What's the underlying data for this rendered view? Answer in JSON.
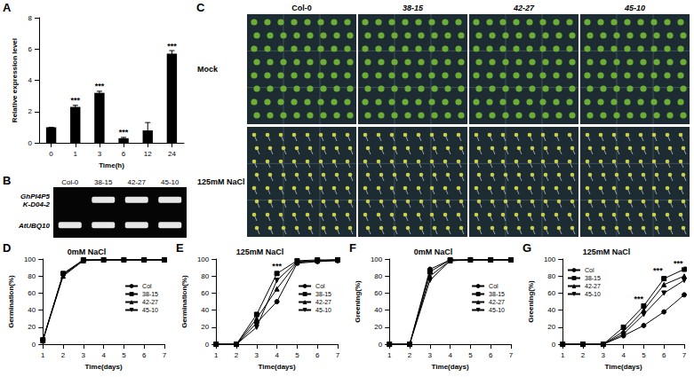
{
  "chart_data": [
    {
      "panel": "A",
      "type": "bar",
      "categories": [
        "0",
        "1",
        "3",
        "6",
        "12",
        "24"
      ],
      "values": [
        1,
        2.3,
        3.2,
        0.3,
        0.8,
        5.7
      ],
      "errors": [
        0,
        0.1,
        0.1,
        0.05,
        0.5,
        0.2
      ],
      "color": "#000000",
      "x_label": "Time(h)",
      "y_label": "Relative expression level",
      "ylim": [
        0,
        8
      ],
      "yticks": [
        0,
        2,
        4,
        6,
        8
      ],
      "annotations": [
        {
          "category": "1",
          "text": "***"
        },
        {
          "category": "3",
          "text": "***"
        },
        {
          "category": "6",
          "text": "***"
        },
        {
          "category": "24",
          "text": "***"
        }
      ]
    },
    {
      "panel": "D",
      "type": "line",
      "title": "0mM NaCl",
      "x_label": "Time(days)",
      "y_label": "Germination(%)",
      "x": [
        1,
        2,
        3,
        4,
        5,
        6,
        7
      ],
      "xlim": [
        1,
        7
      ],
      "xticks": [
        1,
        2,
        3,
        4,
        5,
        6,
        7
      ],
      "ylim": [
        0,
        100
      ],
      "yticks": [
        0,
        20,
        40,
        60,
        80,
        100
      ],
      "legend": "right",
      "series": [
        {
          "name": "Col",
          "color": "#000000",
          "marker": "circle",
          "values": [
            5,
            82,
            99,
            99,
            99,
            99,
            99
          ]
        },
        {
          "name": "38-15",
          "color": "#000000",
          "marker": "square",
          "values": [
            5,
            83,
            99,
            99,
            99,
            99,
            99
          ]
        },
        {
          "name": "42-27",
          "color": "#000000",
          "marker": "triangle",
          "values": [
            4,
            80,
            98,
            99,
            99,
            99,
            99
          ]
        },
        {
          "name": "45-10",
          "color": "#000000",
          "marker": "triangle-down",
          "values": [
            5,
            81,
            99,
            99,
            99,
            99,
            99
          ]
        }
      ]
    },
    {
      "panel": "E",
      "type": "line",
      "title": "125mM NaCl",
      "x_label": "Time(days)",
      "y_label": "Germination(%)",
      "x": [
        1,
        2,
        3,
        4,
        5,
        6,
        7
      ],
      "xlim": [
        1,
        7
      ],
      "xticks": [
        1,
        2,
        3,
        4,
        5,
        6,
        7
      ],
      "ylim": [
        0,
        100
      ],
      "yticks": [
        0,
        20,
        40,
        60,
        80,
        100
      ],
      "legend": "right",
      "series": [
        {
          "name": "Col",
          "color": "#000000",
          "marker": "circle",
          "values": [
            0,
            0,
            25,
            50,
            95,
            97,
            98
          ]
        },
        {
          "name": "38-15",
          "color": "#000000",
          "marker": "square",
          "values": [
            0,
            0,
            35,
            83,
            98,
            99,
            99
          ]
        },
        {
          "name": "42-27",
          "color": "#000000",
          "marker": "triangle",
          "values": [
            0,
            0,
            30,
            65,
            96,
            98,
            99
          ]
        },
        {
          "name": "45-10",
          "color": "#000000",
          "marker": "triangle-down",
          "values": [
            0,
            0,
            20,
            75,
            97,
            98,
            99
          ]
        }
      ],
      "annotations": [
        {
          "x": 4,
          "y": 92,
          "text": "***"
        }
      ]
    },
    {
      "panel": "F",
      "type": "line",
      "title": "0mM NaCl",
      "x_label": "Time(days)",
      "y_label": "Greening(%)",
      "x": [
        1,
        2,
        3,
        4,
        5,
        6,
        7
      ],
      "xlim": [
        1,
        7
      ],
      "xticks": [
        1,
        2,
        3,
        4,
        5,
        6,
        7
      ],
      "ylim": [
        0,
        100
      ],
      "yticks": [
        0,
        20,
        40,
        60,
        80,
        100
      ],
      "legend": "right",
      "series": [
        {
          "name": "Col",
          "color": "#000000",
          "marker": "circle",
          "values": [
            0,
            0,
            88,
            99,
            99,
            99,
            99
          ]
        },
        {
          "name": "38-15",
          "color": "#000000",
          "marker": "square",
          "values": [
            0,
            0,
            85,
            99,
            99,
            99,
            99
          ]
        },
        {
          "name": "42-27",
          "color": "#000000",
          "marker": "triangle",
          "values": [
            0,
            0,
            80,
            98,
            99,
            99,
            99
          ]
        },
        {
          "name": "45-10",
          "color": "#000000",
          "marker": "triangle-down",
          "values": [
            0,
            0,
            75,
            98,
            99,
            99,
            99
          ]
        }
      ]
    },
    {
      "panel": "G",
      "type": "line",
      "title": "125mM NaCl",
      "x_label": "Time(days)",
      "y_label": "Greening(%)",
      "x": [
        1,
        2,
        3,
        4,
        5,
        6,
        7
      ],
      "xlim": [
        1,
        7
      ],
      "xticks": [
        1,
        2,
        3,
        4,
        5,
        6,
        7
      ],
      "ylim": [
        0,
        100
      ],
      "yticks": [
        0,
        20,
        40,
        60,
        80,
        100
      ],
      "legend": "upper left",
      "series": [
        {
          "name": "Col",
          "color": "#000000",
          "marker": "circle",
          "values": [
            0,
            0,
            0,
            10,
            22,
            38,
            58
          ]
        },
        {
          "name": "38-15",
          "color": "#000000",
          "marker": "square",
          "values": [
            0,
            0,
            0,
            20,
            45,
            77,
            88
          ]
        },
        {
          "name": "42-27",
          "color": "#000000",
          "marker": "triangle",
          "values": [
            0,
            0,
            0,
            15,
            40,
            70,
            80
          ]
        },
        {
          "name": "45-10",
          "color": "#000000",
          "marker": "triangle-down",
          "values": [
            0,
            0,
            0,
            12,
            35,
            60,
            75
          ]
        }
      ],
      "annotations": [
        {
          "x": 4.75,
          "y": 53,
          "text": "***"
        },
        {
          "x": 5.7,
          "y": 86,
          "text": "***"
        },
        {
          "x": 6.7,
          "y": 95,
          "text": "***"
        }
      ]
    }
  ],
  "gel": {
    "panel": "B",
    "lanes": [
      "Col-0",
      "38-15",
      "42-27",
      "45-10"
    ],
    "rows": [
      {
        "label": "GhPI4P5K-D04-2",
        "bands": [
          false,
          true,
          true,
          true
        ]
      },
      {
        "label": "AtUBQ10",
        "bands": [
          true,
          true,
          true,
          true
        ]
      }
    ]
  },
  "photos": {
    "panel": "C",
    "columns": [
      "Col-0",
      "38-15",
      "42-27",
      "45-10"
    ],
    "rows": [
      "Mock",
      "125mM NaCl"
    ]
  }
}
